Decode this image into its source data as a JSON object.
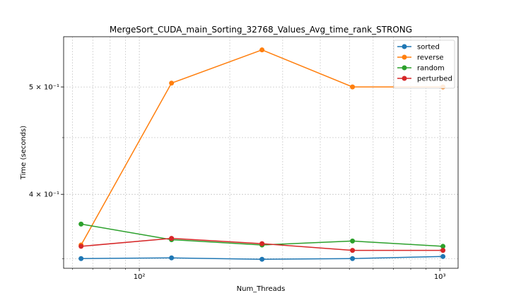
{
  "chart_data": {
    "type": "line",
    "title": "MergeSort_CUDA_main_Sorting_32768_Values_Avg_time_rank_STRONG",
    "xlabel": "Num_Threads",
    "ylabel": "Time (seconds)",
    "xscale": "log",
    "yscale": "log",
    "xlim": [
      56,
      1150
    ],
    "ylim": [
      0.343,
      0.555
    ],
    "grid": "on (major and minor)",
    "legend_position": "top-right",
    "x": [
      64,
      128,
      256,
      512,
      1024
    ],
    "xticks": [
      {
        "value": 100,
        "label": "10²"
      },
      {
        "value": 1000,
        "label": "10³"
      }
    ],
    "yticks": [
      {
        "value": 0.4,
        "label": "4 × 10⁻¹"
      },
      {
        "value": 0.5,
        "label": "5 × 10⁻¹"
      }
    ],
    "series": [
      {
        "name": "sorted",
        "color": "#1f77b4",
        "values": [
          0.35,
          0.3505,
          0.3495,
          0.35,
          0.3515
        ]
      },
      {
        "name": "reverse",
        "color": "#ff7f0e",
        "values": [
          0.36,
          0.504,
          0.54,
          0.5,
          0.5
        ]
      },
      {
        "name": "random",
        "color": "#2ca02c",
        "values": [
          0.376,
          0.364,
          0.36,
          0.363,
          0.359
        ]
      },
      {
        "name": "perturbed",
        "color": "#d62728",
        "values": [
          0.359,
          0.365,
          0.361,
          0.356,
          0.356
        ]
      }
    ]
  }
}
